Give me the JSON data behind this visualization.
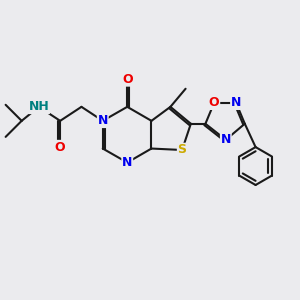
{
  "bg_color": "#ebebee",
  "bond_color": "#1a1a1a",
  "bond_lw": 1.5,
  "atom_colors": {
    "N": "#0000ee",
    "O": "#ee0000",
    "S": "#ccaa00",
    "H": "#008080",
    "C": "#1a1a1a"
  },
  "layout": {
    "xlim": [
      0,
      10
    ],
    "ylim": [
      0,
      10
    ]
  }
}
